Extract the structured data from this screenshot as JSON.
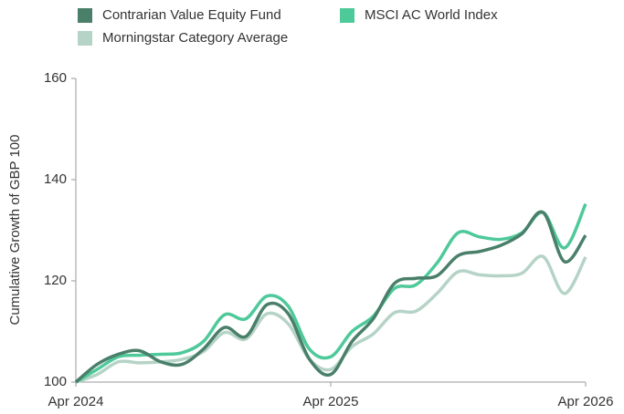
{
  "chart_data": {
    "type": "line",
    "y_label": "Cumulative Growth of GBP 100",
    "x": [
      "2024-04",
      "2024-05",
      "2024-06",
      "2024-07",
      "2024-08",
      "2024-09",
      "2024-10",
      "2024-11",
      "2024-12",
      "2025-01",
      "2025-02",
      "2025-03",
      "2025-04",
      "2025-05",
      "2025-06",
      "2025-07",
      "2025-08",
      "2025-09",
      "2025-10",
      "2025-11",
      "2025-12",
      "2026-01",
      "2026-02",
      "2026-03",
      "2026-04"
    ],
    "series": [
      {
        "name": "Contrarian Value Equity Fund",
        "color": "#4a7f6a",
        "values": [
          100,
          103.5,
          105.5,
          106.2,
          104,
          103.5,
          106.5,
          110.8,
          109,
          115.3,
          113.5,
          104.5,
          101.5,
          108,
          112.5,
          119.5,
          120.5,
          121,
          125,
          125.8,
          127,
          129.3,
          133.5,
          123.8,
          129
        ]
      },
      {
        "name": "MSCI AC World Index",
        "color": "#4ec99a",
        "values": [
          100,
          102.5,
          105,
          105.3,
          105.5,
          105.8,
          108,
          113.3,
          112.5,
          117,
          115,
          106.5,
          105,
          110,
          113,
          118.5,
          119.2,
          123.5,
          129.5,
          128.7,
          128.2,
          129.5,
          133.5,
          126.5,
          135.2
        ]
      },
      {
        "name": "Morningstar Category Average",
        "color": "#b5d3c6",
        "values": [
          100,
          101.5,
          104,
          103.8,
          104,
          104.5,
          106,
          109.8,
          108.5,
          113.5,
          111.5,
          104.5,
          102.5,
          107,
          109.5,
          113.7,
          114,
          117.5,
          121.8,
          121.2,
          121,
          121.5,
          124.8,
          117.5,
          124.7
        ]
      }
    ],
    "ylim": [
      100,
      160
    ],
    "yticks": [
      100,
      120,
      140,
      160
    ],
    "xticks": [
      {
        "value": "2024-04",
        "label": "Apr 2024"
      },
      {
        "value": "2025-04",
        "label": "Apr 2025"
      },
      {
        "value": "2026-04",
        "label": "Apr 2026"
      }
    ],
    "grid": false
  }
}
